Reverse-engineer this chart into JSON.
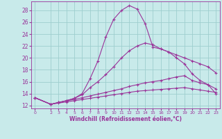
{
  "xlabel": "Windchill (Refroidissement éolien,°C)",
  "background_color": "#c8eaea",
  "grid_color": "#9ecece",
  "line_color": "#993399",
  "x_ticks": [
    0,
    2,
    3,
    4,
    5,
    6,
    7,
    8,
    9,
    10,
    11,
    12,
    13,
    14,
    15,
    16,
    17,
    18,
    19,
    20,
    21,
    22,
    23
  ],
  "ylim": [
    11.5,
    29.5
  ],
  "xlim": [
    -0.5,
    23.5
  ],
  "yticks": [
    12,
    14,
    16,
    18,
    20,
    22,
    24,
    26,
    28
  ],
  "series": [
    {
      "x": [
        0,
        2,
        3,
        4,
        5,
        6,
        7,
        8,
        9,
        10,
        11,
        12,
        13,
        14,
        15,
        16,
        17,
        18,
        19,
        20,
        21,
        22,
        23
      ],
      "y": [
        13.3,
        12.2,
        12.5,
        12.8,
        13.2,
        14.0,
        16.5,
        19.5,
        23.5,
        26.5,
        28.0,
        28.8,
        28.2,
        25.8,
        21.8,
        21.5,
        21.0,
        20.5,
        20.0,
        19.5,
        19.0,
        18.5,
        17.5
      ]
    },
    {
      "x": [
        0,
        2,
        3,
        4,
        5,
        6,
        7,
        8,
        9,
        10,
        11,
        12,
        13,
        14,
        15,
        16,
        17,
        18,
        19,
        20,
        21,
        22,
        23
      ],
      "y": [
        13.3,
        12.2,
        12.5,
        12.8,
        13.2,
        13.8,
        15.0,
        16.0,
        17.2,
        18.5,
        20.0,
        21.2,
        22.0,
        22.5,
        22.2,
        21.5,
        21.0,
        20.0,
        19.0,
        17.3,
        16.2,
        15.5,
        14.0
      ]
    },
    {
      "x": [
        0,
        2,
        3,
        4,
        5,
        6,
        7,
        8,
        9,
        10,
        11,
        12,
        13,
        14,
        15,
        16,
        17,
        18,
        19,
        20,
        21,
        22,
        23
      ],
      "y": [
        13.3,
        12.2,
        12.5,
        12.8,
        13.0,
        13.3,
        13.6,
        13.9,
        14.2,
        14.5,
        14.8,
        15.2,
        15.5,
        15.8,
        16.0,
        16.2,
        16.5,
        16.8,
        17.0,
        16.2,
        15.8,
        15.5,
        14.8
      ]
    },
    {
      "x": [
        0,
        2,
        3,
        4,
        5,
        6,
        7,
        8,
        9,
        10,
        11,
        12,
        13,
        14,
        15,
        16,
        17,
        18,
        19,
        20,
        21,
        22,
        23
      ],
      "y": [
        13.3,
        12.2,
        12.4,
        12.6,
        12.8,
        13.0,
        13.2,
        13.4,
        13.6,
        13.8,
        14.0,
        14.2,
        14.4,
        14.5,
        14.6,
        14.7,
        14.8,
        14.9,
        15.0,
        14.8,
        14.6,
        14.4,
        14.2
      ]
    }
  ]
}
